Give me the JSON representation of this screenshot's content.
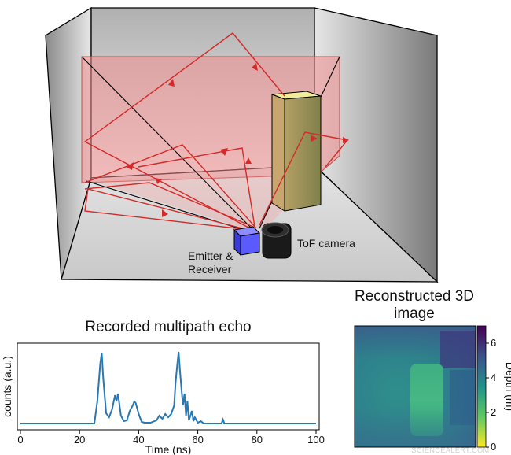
{
  "labels": {
    "emitter_line1": "Emitter &",
    "emitter_line2": "Receiver",
    "camera": "ToF camera",
    "echo_title": "Recorded multipath echo",
    "recon_title_line1": "Reconstructed 3D",
    "recon_title_line2": "image",
    "watermark": "SCIENCEALERT.COM"
  },
  "chart_data": [
    {
      "type": "line",
      "title": "Recorded multipath echo",
      "xlabel": "Time (ns)",
      "ylabel": "counts (a.u.)",
      "xlim": [
        0,
        100
      ],
      "xticks": [
        0,
        20,
        40,
        60,
        80,
        100
      ],
      "yticks": [],
      "grid": false,
      "series": [
        {
          "color": "#2878b5",
          "x": [
            0,
            20,
            25,
            26,
            27,
            27.5,
            28,
            29,
            30,
            31,
            32,
            32.5,
            33,
            34,
            35,
            36,
            37,
            38,
            38.5,
            39,
            40,
            41,
            42,
            44,
            46,
            47,
            48,
            49,
            50,
            51,
            52,
            52.5,
            53,
            53.5,
            54,
            54.5,
            55,
            55.5,
            56,
            56.5,
            57,
            58,
            58.5,
            59,
            60,
            61,
            62,
            68,
            68.5,
            69,
            70,
            80,
            100
          ],
          "y": [
            0.02,
            0.02,
            0.02,
            0.3,
            0.78,
            0.92,
            0.6,
            0.15,
            0.1,
            0.2,
            0.38,
            0.3,
            0.4,
            0.12,
            0.05,
            0.06,
            0.18,
            0.25,
            0.3,
            0.28,
            0.14,
            0.04,
            0.03,
            0.03,
            0.06,
            0.12,
            0.08,
            0.14,
            0.1,
            0.14,
            0.25,
            0.55,
            0.75,
            0.93,
            0.68,
            0.45,
            0.25,
            0.4,
            0.12,
            0.3,
            0.06,
            0.18,
            0.05,
            0.1,
            0.03,
            0.05,
            0.02,
            0.02,
            0.07,
            0.02,
            0.02,
            0.02,
            0.02
          ]
        }
      ]
    },
    {
      "type": "heatmap",
      "title": "Reconstructed 3D image",
      "colorbar_label": "Depth (m)",
      "colorbar_ticks": [
        0,
        2,
        4,
        6
      ],
      "colorbar_range": [
        0,
        7
      ],
      "colormap": "viridis"
    }
  ]
}
